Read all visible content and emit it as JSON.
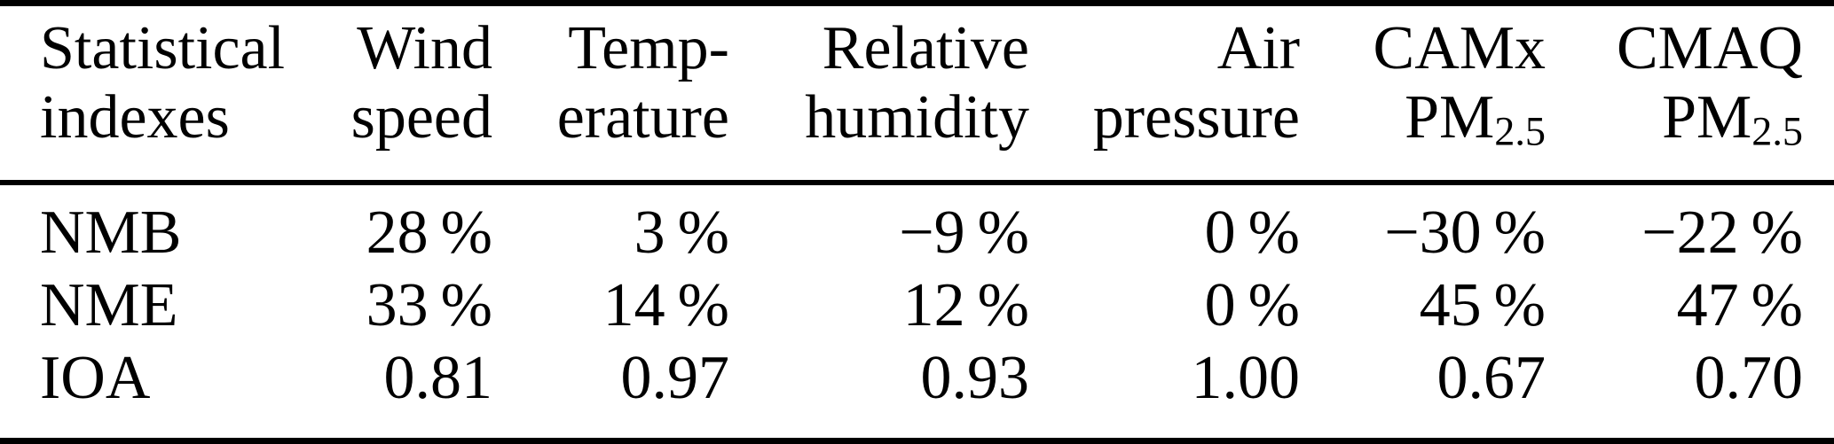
{
  "table": {
    "title": "Statistical indexes table",
    "colors": {
      "text": "#000000",
      "background": "#ffffff",
      "rule": "#000000"
    },
    "columns": [
      {
        "line1": "Statistical",
        "line2": "indexes"
      },
      {
        "line1": "Wind",
        "line2": "speed"
      },
      {
        "line1": "Temp-",
        "line2": "erature"
      },
      {
        "line1": "Relative",
        "line2": "humidity"
      },
      {
        "line1": "Air",
        "line2": "pressure"
      },
      {
        "line1": "CAMx",
        "line2": "PM",
        "line2_sub": "2.5"
      },
      {
        "line1": "CMAQ",
        "line2": "PM",
        "line2_sub": "2.5"
      }
    ],
    "rows": [
      {
        "label": "NMB",
        "values": [
          "28 %",
          "3 %",
          "−9 %",
          "0 %",
          "−30 %",
          "−22 %"
        ]
      },
      {
        "label": "NME",
        "values": [
          "33 %",
          "14 %",
          "12 %",
          "0 %",
          "45 %",
          "47 %"
        ]
      },
      {
        "label": "IOA",
        "values": [
          "0.81",
          "0.97",
          "0.93",
          "1.00",
          "0.67",
          "0.70"
        ]
      }
    ]
  }
}
